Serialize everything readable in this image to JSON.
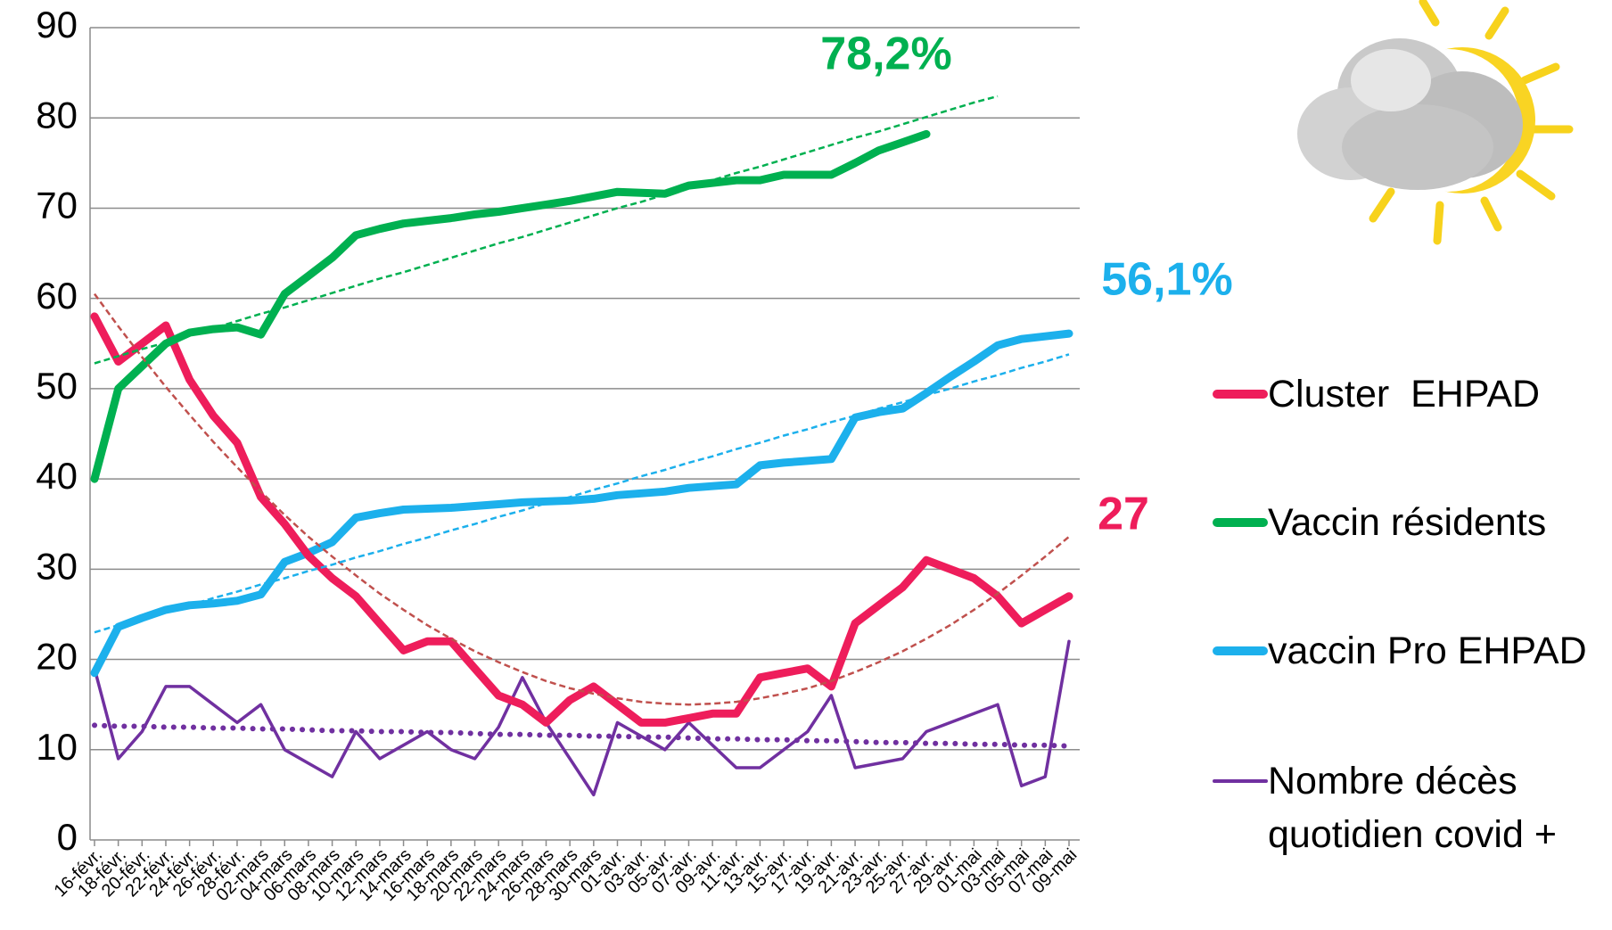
{
  "chart_data": {
    "type": "line",
    "categories": [
      "16-févr.",
      "18-févr.",
      "20-févr.",
      "22-févr.",
      "24-févr.",
      "26-févr.",
      "28-févr.",
      "02-mars",
      "04-mars",
      "06-mars",
      "08-mars",
      "10-mars",
      "12-mars",
      "14-mars",
      "16-mars",
      "18-mars",
      "20-mars",
      "22-mars",
      "24-mars",
      "26-mars",
      "28-mars",
      "30-mars",
      "01-avr.",
      "03-avr.",
      "05-avr.",
      "07-avr.",
      "09-avr.",
      "11-avr.",
      "13-avr.",
      "15-avr.",
      "17-avr.",
      "19-avr.",
      "21-avr.",
      "23-avr.",
      "25-avr.",
      "27-avr.",
      "29-avr.",
      "01-mai",
      "03-mai",
      "05-mai",
      "07-mai",
      "09-mai"
    ],
    "ylim": [
      0,
      90
    ],
    "yticks": [
      0,
      10,
      20,
      30,
      40,
      50,
      60,
      70,
      80,
      90
    ],
    "grid": true,
    "series": [
      {
        "name": "Cluster  EHPAD",
        "color": "#ee1d5b",
        "width": 9,
        "end_label": "27",
        "values": [
          58,
          53,
          55,
          57,
          51,
          47,
          44,
          38,
          35,
          31.5,
          29,
          27,
          24,
          21,
          22,
          22,
          19,
          16,
          15,
          13,
          15.5,
          17,
          15,
          13,
          13,
          13.5,
          14,
          14,
          18,
          18.5,
          19,
          17,
          24,
          26,
          28,
          31,
          30,
          29,
          27,
          24,
          25.5,
          27
        ],
        "trendline": {
          "color": "#c0504d",
          "style": "dash",
          "values": [
            60.5,
            56.9,
            53.5,
            50.2,
            47.1,
            44.1,
            41.3,
            38.6,
            36.0,
            33.6,
            31.4,
            29.3,
            27.3,
            25.5,
            23.8,
            22.3,
            20.9,
            19.7,
            18.6,
            17.6,
            16.8,
            16.2,
            15.7,
            15.3,
            15.1,
            15.0,
            15.1,
            15.3,
            15.7,
            16.2,
            16.8,
            17.6,
            18.6,
            19.7,
            20.9,
            22.3,
            23.8,
            25.5,
            27.3,
            29.3,
            31.4,
            33.6
          ]
        }
      },
      {
        "name": "Vaccin résidents",
        "color": "#00b050",
        "width": 9,
        "end_label": "78,2%",
        "values": [
          40,
          50,
          52.5,
          55,
          56.2,
          56.6,
          56.8,
          56,
          60.5,
          62.5,
          64.5,
          67,
          67.7,
          68.3,
          68.6,
          68.9,
          69.3,
          69.6,
          70,
          70.4,
          70.8,
          71.3,
          71.8,
          71.7,
          71.6,
          72.5,
          72.8,
          73.1,
          73.1,
          73.7,
          73.7,
          73.7,
          75,
          76.4,
          77.3,
          78.2,
          null,
          null,
          null,
          null,
          null,
          null
        ],
        "trendline": {
          "color": "#00b050",
          "style": "dash",
          "values": [
            52.8,
            53.6,
            54.4,
            55.1,
            55.9,
            56.7,
            57.5,
            58.3,
            59.0,
            59.8,
            60.6,
            61.4,
            62.2,
            62.9,
            63.7,
            64.5,
            65.3,
            66.1,
            66.8,
            67.6,
            68.4,
            69.2,
            70.0,
            70.7,
            71.5,
            72.3,
            73.1,
            73.9,
            74.6,
            75.4,
            76.2,
            77.0,
            77.8,
            78.5,
            79.3,
            80.1,
            80.9,
            81.7,
            82.4,
            null,
            null,
            null
          ]
        }
      },
      {
        "name": "vaccin Pro EHPAD",
        "color": "#1cb0ec",
        "width": 9,
        "end_label": "56,1%",
        "values": [
          18.5,
          23.6,
          24.6,
          25.5,
          26,
          26.2,
          26.5,
          27.2,
          30.8,
          31.8,
          33,
          35.7,
          36.2,
          36.6,
          36.7,
          36.8,
          37,
          37.2,
          37.4,
          37.5,
          37.6,
          37.8,
          38.2,
          38.4,
          38.6,
          39,
          39.2,
          39.4,
          41.5,
          41.8,
          42,
          42.2,
          46.8,
          47.4,
          47.8,
          49.5,
          51.3,
          53,
          54.8,
          55.5,
          55.8,
          56.1
        ],
        "trendline": {
          "color": "#1cb0ec",
          "style": "dash",
          "values": [
            23.0,
            23.8,
            24.5,
            25.3,
            26.0,
            26.8,
            27.5,
            28.3,
            29.0,
            29.8,
            30.5,
            31.3,
            32.0,
            32.8,
            33.5,
            34.3,
            35.0,
            35.8,
            36.5,
            37.3,
            38.0,
            38.8,
            39.5,
            40.3,
            41.0,
            41.8,
            42.5,
            43.3,
            44.0,
            44.8,
            45.5,
            46.3,
            47.0,
            47.8,
            48.5,
            49.3,
            50.0,
            50.8,
            51.5,
            52.3,
            53.0,
            53.8
          ]
        }
      },
      {
        "name": "Nombre décès quotidien covid +",
        "color": "#7030a0",
        "width": 3.5,
        "values": [
          19,
          9,
          12,
          17,
          17,
          15,
          13,
          15,
          10,
          8.5,
          7,
          12,
          9,
          10.5,
          12,
          10,
          9,
          12.5,
          18,
          13,
          9,
          5,
          13,
          11.5,
          10,
          13,
          10.5,
          8,
          8,
          10,
          12,
          16,
          8,
          8.5,
          9,
          12,
          13,
          14,
          15,
          6,
          7,
          22
        ],
        "trendline": {
          "color": "#7030a0",
          "style": "dot",
          "values": [
            12.7,
            12.6,
            12.6,
            12.5,
            12.5,
            12.4,
            12.4,
            12.3,
            12.3,
            12.2,
            12.1,
            12.1,
            12.0,
            12.0,
            11.9,
            11.9,
            11.8,
            11.7,
            11.7,
            11.6,
            11.6,
            11.5,
            11.5,
            11.4,
            11.4,
            11.3,
            11.2,
            11.2,
            11.1,
            11.1,
            11.0,
            11.0,
            10.9,
            10.8,
            10.8,
            10.7,
            10.7,
            10.6,
            10.6,
            10.5,
            10.5,
            10.4
          ]
        }
      }
    ]
  }
}
